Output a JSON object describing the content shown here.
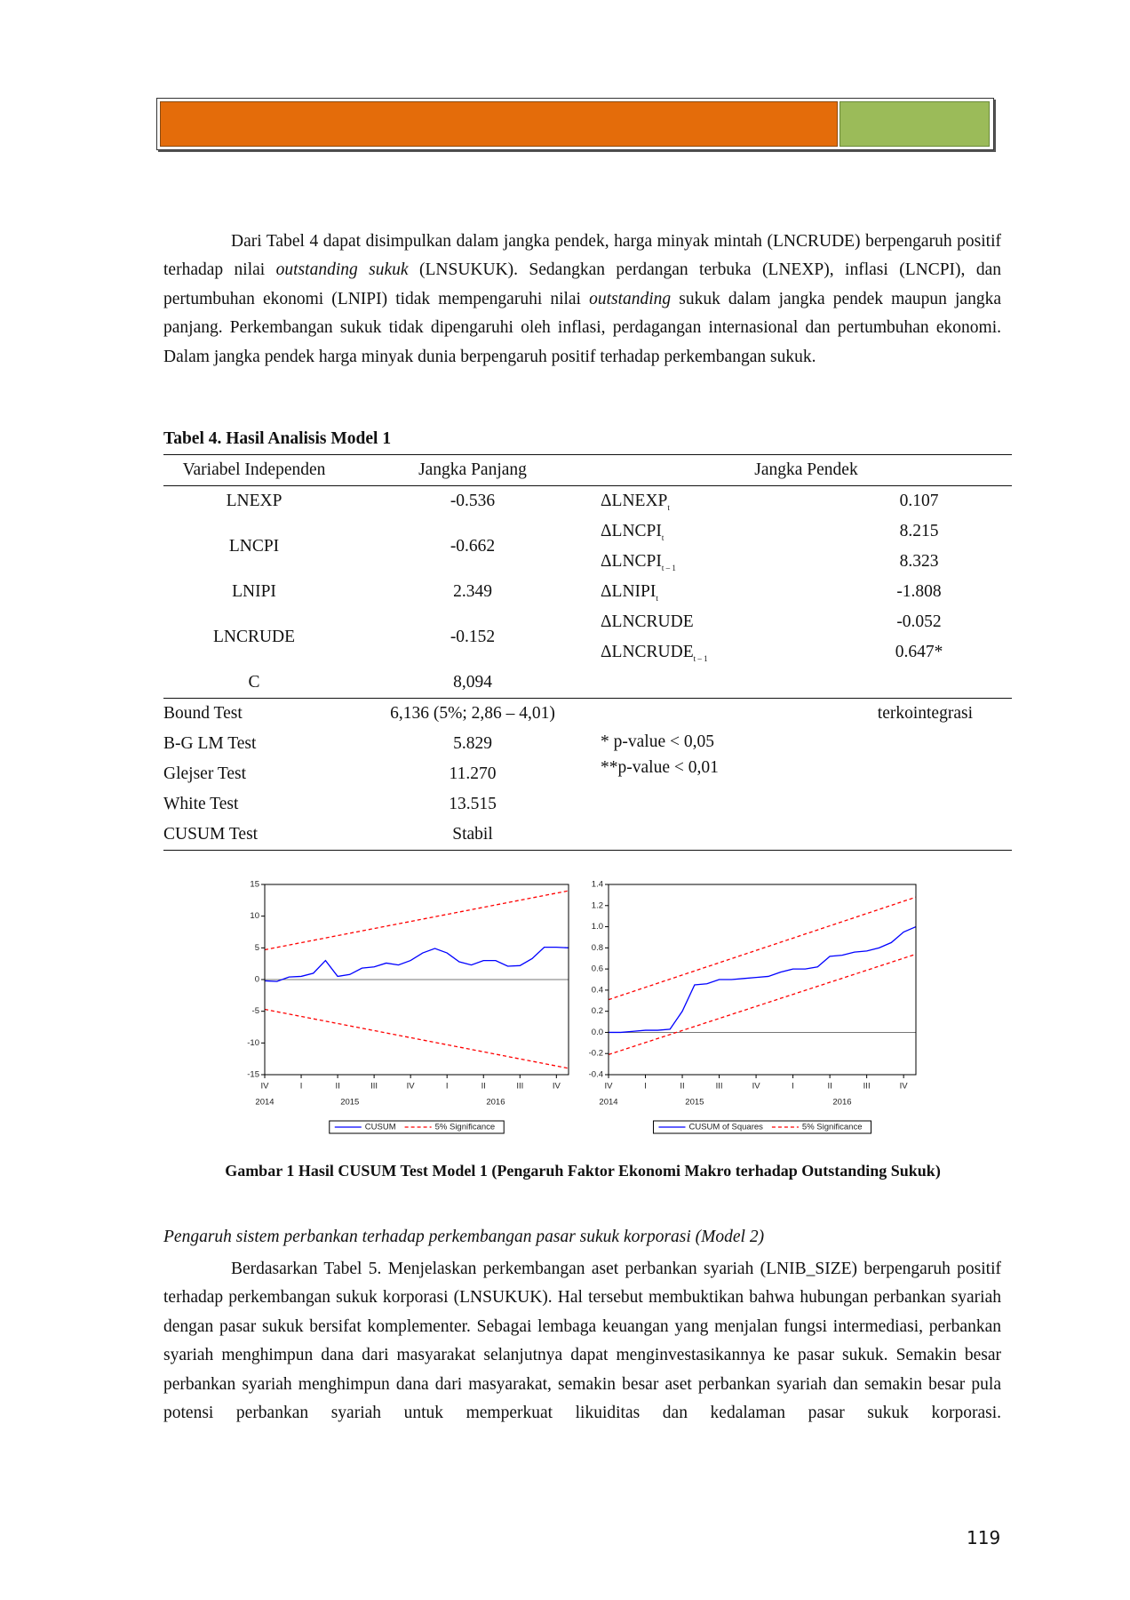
{
  "paragraphs": [
    {
      "runs": [
        {
          "text": "Dari Tabel 4 dapat disimpulkan dalam jangka pendek, harga minyak mintah (LNCRUDE) berpengaruh positif terhadap nilai "
        },
        {
          "text": "outstanding sukuk",
          "italic": true
        },
        {
          "text": " (LNSUKUK). Sedangkan perdangan terbuka (LNEXP), inflasi (LNCPI), dan pertumbuhan ekonomi (LNIPI) tidak mempengaruhi nilai "
        },
        {
          "text": "outstanding",
          "italic": true
        },
        {
          "text": " sukuk dalam jangka pendek maupun jangka panjang. Perkembangan sukuk tidak dipengaruhi oleh inflasi, perdagangan internasional dan pertumbuhan ekonomi. Dalam jangka pendek harga minyak dunia berpengaruh positif terhadap perkembangan sukuk."
        }
      ]
    },
    {
      "runs": [
        {
          "text": "Berdasarkan Tabel 5. Menjelaskan perkembangan aset perbankan syariah (LNIB_SIZE) berpengaruh positif terhadap perkembangan sukuk korporasi (LNSUKUK). Hal tersebut membuktikan bahwa hubungan perbankan syariah dengan pasar sukuk bersifat komplementer. Sebagai lembaga keuangan yang menjalan fungsi intermediasi, perbankan syariah menghimpun dana dari masyarakat selanjutnya dapat menginvestasikannya ke pasar sukuk. Semakin besar perbankan syariah menghimpun dana dari masyarakat, semakin besar aset perbankan syariah dan semakin besar pula potensi perbankan syariah untuk memperkuat likuiditas dan kedalaman pasar sukuk korporasi."
        }
      ]
    }
  ],
  "table": {
    "title": "Tabel 4. Hasil Analisis Model 1",
    "headers": [
      "Variabel Independen",
      "Jangka Panjang",
      "Jangka Pendek"
    ],
    "long_run": [
      {
        "variable": "LNEXP",
        "coefficient": "-0.536"
      },
      {
        "variable": "LNCPI",
        "coefficient": "-0.662"
      },
      {
        "variable": "LNIPI",
        "coefficient": "2.349"
      },
      {
        "variable": "LNCRUDE",
        "coefficient": "-0.152"
      },
      {
        "variable": "C",
        "coefficient": "8,094"
      }
    ],
    "short_run": [
      {
        "variable": "ΔLNEXP",
        "sub": "t",
        "coefficient": "0.107"
      },
      {
        "variable": "ΔLNCPI",
        "sub": "t",
        "coefficient": "8.215"
      },
      {
        "variable": "ΔLNCPI",
        "sub": "t – 1",
        "coefficient": "8.323"
      },
      {
        "variable": "ΔLNIPI",
        "sub": "t",
        "coefficient": "-1.808"
      },
      {
        "variable": "ΔLNCRUDE",
        "coefficient": "-0.052"
      },
      {
        "variable": "ΔLNCRUDE",
        "sub": "t – 1",
        "coefficient": "0.647*"
      }
    ],
    "tests": [
      {
        "name": "Bound Test",
        "value": "6,136 (5%; 2,86 – 4,01)",
        "result": "terkointegrasi"
      },
      {
        "name": "B-G LM Test",
        "value": "5.829"
      },
      {
        "name": "Glejser Test",
        "value": "11.270"
      },
      {
        "name": "White Test",
        "value": "13.515"
      },
      {
        "name": "CUSUM Test",
        "value": "Stabil"
      }
    ],
    "notes": [
      "* p-value < 0,05",
      "**p-value < 0,01"
    ]
  },
  "chart_data": [
    {
      "type": "line",
      "x": [
        0,
        1,
        2,
        3,
        4,
        5,
        6,
        7,
        8,
        9,
        10,
        11,
        12,
        13,
        14,
        15,
        16,
        17,
        18,
        19,
        20,
        21,
        22,
        23,
        24,
        25
      ],
      "xlim": [
        0,
        25
      ],
      "xticks": [
        {
          "value": 0,
          "label": "IV"
        },
        {
          "value": 3,
          "label": "I"
        },
        {
          "value": 6,
          "label": "II"
        },
        {
          "value": 9,
          "label": "III"
        },
        {
          "value": 12,
          "label": "IV"
        },
        {
          "value": 15,
          "label": "I"
        },
        {
          "value": 18,
          "label": "II"
        },
        {
          "value": 21,
          "label": "III"
        },
        {
          "value": 24,
          "label": "IV"
        }
      ],
      "year_ticks": [
        {
          "value": 0,
          "label": "2014"
        },
        {
          "value": 7,
          "label": "2015"
        },
        {
          "value": 19,
          "label": "2016"
        }
      ],
      "ylim": [
        -15,
        15
      ],
      "yticks": [
        -15,
        -10,
        -5,
        0,
        5,
        10,
        15
      ],
      "series": [
        {
          "name": "CUSUM",
          "color": "#0000ff",
          "values": [
            -0.2,
            -0.3,
            0.4,
            0.5,
            1.0,
            3.0,
            0.5,
            0.8,
            1.8,
            2.0,
            2.6,
            2.3,
            3.0,
            4.2,
            4.9,
            4.2,
            2.8,
            2.3,
            3.0,
            3.0,
            2.1,
            2.2,
            3.3,
            5.1,
            5.1,
            5.0
          ]
        },
        {
          "name": "5% Significance",
          "color": "#ff0000",
          "dashed": true,
          "x": [
            0,
            25
          ],
          "values": [
            4.7,
            14
          ],
          "lower_values": [
            -4.7,
            -14
          ]
        }
      ],
      "legend": "bottom"
    },
    {
      "type": "line",
      "x": [
        0,
        1,
        2,
        3,
        4,
        5,
        6,
        7,
        8,
        9,
        10,
        11,
        12,
        13,
        14,
        15,
        16,
        17,
        18,
        19,
        20,
        21,
        22,
        23,
        24,
        25
      ],
      "xlim": [
        0,
        25
      ],
      "xticks": [
        {
          "value": 0,
          "label": "IV"
        },
        {
          "value": 3,
          "label": "I"
        },
        {
          "value": 6,
          "label": "II"
        },
        {
          "value": 9,
          "label": "III"
        },
        {
          "value": 12,
          "label": "IV"
        },
        {
          "value": 15,
          "label": "I"
        },
        {
          "value": 18,
          "label": "II"
        },
        {
          "value": 21,
          "label": "III"
        },
        {
          "value": 24,
          "label": "IV"
        }
      ],
      "year_ticks": [
        {
          "value": 0,
          "label": "2014"
        },
        {
          "value": 7,
          "label": "2015"
        },
        {
          "value": 19,
          "label": "2016"
        }
      ],
      "ylim": [
        -0.4,
        1.4
      ],
      "yticks": [
        -0.4,
        -0.2,
        {
          "value": 0,
          "label": "0.0"
        },
        0.2,
        0.4,
        0.6,
        0.8,
        {
          "value": 1,
          "label": "1.0"
        },
        1.2,
        1.4
      ],
      "series": [
        {
          "name": "CUSUM of Squares",
          "color": "#0000ff",
          "values": [
            0,
            0,
            0.01,
            0.02,
            0.02,
            0.03,
            0.2,
            0.45,
            0.46,
            0.5,
            0.5,
            0.51,
            0.52,
            0.53,
            0.57,
            0.6,
            0.6,
            0.62,
            0.72,
            0.73,
            0.76,
            0.77,
            0.8,
            0.85,
            0.95,
            1.0
          ]
        },
        {
          "name": "5% Significance",
          "color": "#ff0000",
          "dashed": true,
          "x": [
            0,
            25
          ],
          "values": [
            0.31,
            1.28
          ],
          "lower_values": [
            -0.21,
            0.74
          ]
        }
      ],
      "legend": "bottom"
    }
  ],
  "figure_caption": "Gambar 1 Hasil CUSUM Test Model 1 (Pengaruh Faktor Ekonomi Makro terhadap Outstanding Sukuk)",
  "section_heading": "Pengaruh sistem perbankan terhadap perkembangan pasar sukuk korporasi (Model 2)",
  "page_number": "119"
}
